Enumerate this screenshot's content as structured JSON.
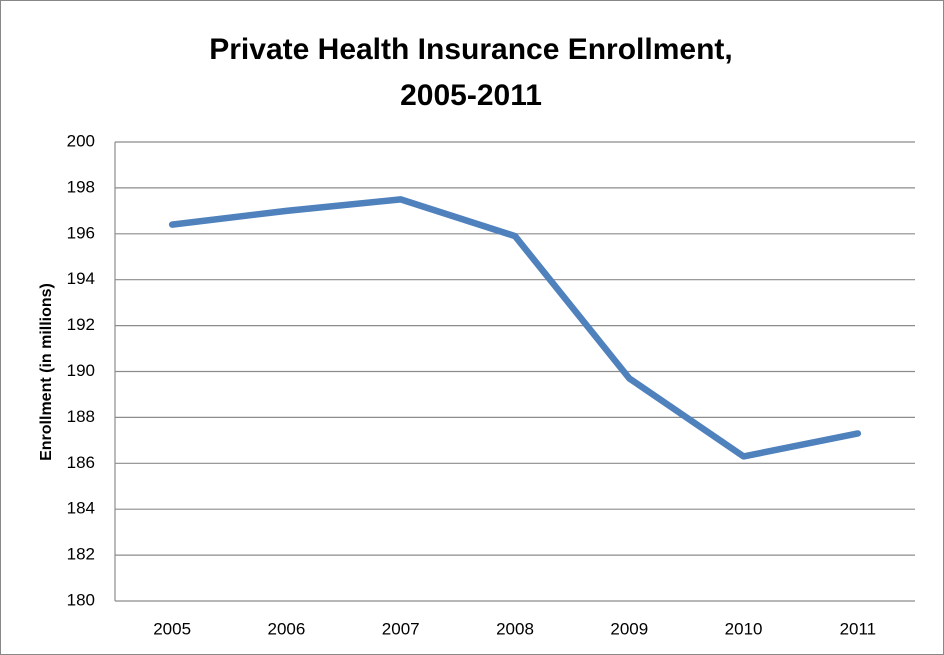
{
  "chart_data": {
    "type": "line",
    "title": "Private Health Insurance Enrollment, 2005-2011",
    "y_label": "Enrollment (in millions)",
    "categories": [
      "2005",
      "2006",
      "2007",
      "2008",
      "2009",
      "2010",
      "2011"
    ],
    "series": [
      {
        "color": "#4f81bd",
        "values": [
          196.4,
          197.0,
          197.5,
          195.9,
          189.7,
          186.3,
          187.3
        ]
      }
    ],
    "ylim": [
      180,
      200
    ],
    "yticks": [
      180,
      182,
      184,
      186,
      188,
      190,
      192,
      194,
      196,
      198,
      200
    ],
    "grid": true
  }
}
